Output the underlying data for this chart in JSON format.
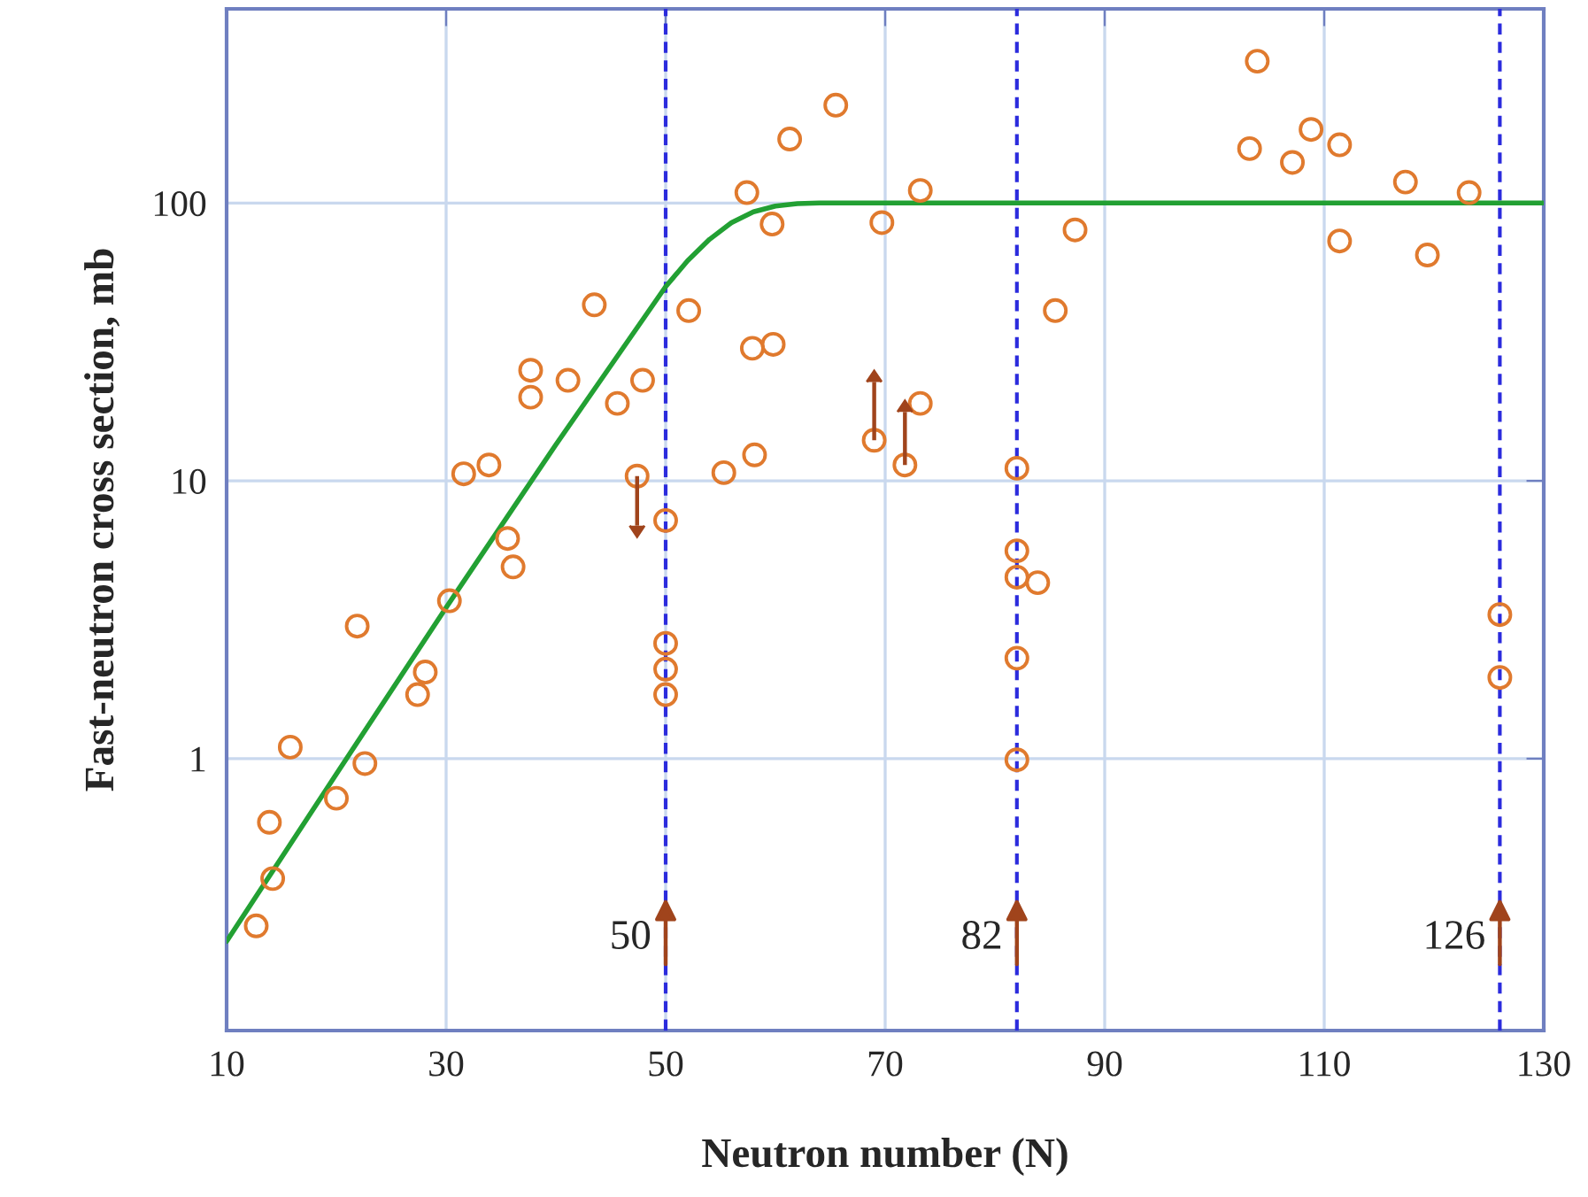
{
  "chart_data": {
    "type": "scatter",
    "xlabel": "Neutron number (N)",
    "ylabel": "Fast-neutron cross section, mb",
    "log": "y",
    "xlim": [
      10,
      130
    ],
    "ylim": [
      0.105,
      500
    ],
    "xticks": [
      10,
      30,
      50,
      70,
      90,
      110,
      130
    ],
    "yticks": [
      1,
      10,
      100
    ],
    "grid": true,
    "series": [
      {
        "color": "#e07a2e",
        "marker": "circle",
        "x": [
          12.7,
          13.9,
          14.2,
          15.8,
          20.0,
          21.9,
          22.6,
          27.4,
          28.1,
          30.3,
          31.6,
          33.9,
          35.6,
          36.1,
          37.7,
          37.7,
          41.1,
          43.5,
          45.6,
          47.9,
          50,
          50,
          50,
          50,
          52.1,
          55.3,
          57.4,
          57.9,
          58.1,
          59.7,
          59.8,
          61.3,
          65.5,
          69.7,
          73.2,
          73.2,
          82,
          82,
          82,
          82,
          82,
          83.9,
          85.5,
          87.3,
          103.2,
          103.9,
          107.1,
          108.8,
          111.4,
          111.4,
          117.4,
          119.4,
          123.2,
          126,
          126
        ],
        "values": [
          0.25,
          0.59,
          0.37,
          1.1,
          0.72,
          3.0,
          0.96,
          1.7,
          2.05,
          3.7,
          10.6,
          11.4,
          6.2,
          4.9,
          25,
          20,
          23,
          43,
          19,
          23,
          7.2,
          2.6,
          2.1,
          1.7,
          41,
          10.7,
          109,
          30,
          12.4,
          84,
          31,
          170,
          225,
          85,
          111,
          19,
          11.1,
          5.6,
          4.5,
          2.3,
          0.99,
          4.3,
          41,
          80,
          157,
          324,
          140,
          184,
          162,
          73,
          119,
          65,
          109,
          3.3,
          1.96
        ]
      },
      {
        "color": "#e07a2e",
        "marker": "circle",
        "x": [
          47.4,
          69.0,
          71.8
        ],
        "values": [
          10.4,
          14,
          11.4
        ],
        "errors": [
          [
            6.9,
            10.4
          ],
          [
            14,
            22.7
          ],
          [
            11.4,
            17.7
          ]
        ]
      },
      {
        "type": "line",
        "color": "#22a033",
        "x": [
          10,
          20,
          30,
          40,
          50,
          52,
          54,
          56,
          58,
          60,
          62,
          64,
          130
        ],
        "values": [
          0.22,
          0.88,
          3.5,
          13.5,
          50,
          62,
          74,
          85,
          93,
          97.5,
          99.5,
          100,
          100
        ]
      }
    ],
    "ref_lines": [
      {
        "axis": "x",
        "value": 50,
        "label": "50",
        "color": "#2b2bdd",
        "line_style": "dashed"
      },
      {
        "axis": "x",
        "value": 82,
        "label": "82",
        "color": "#2b2bdd",
        "line_style": "dashed"
      },
      {
        "axis": "x",
        "value": 126,
        "label": "126",
        "color": "#2b2bdd",
        "line_style": "dashed"
      }
    ]
  }
}
